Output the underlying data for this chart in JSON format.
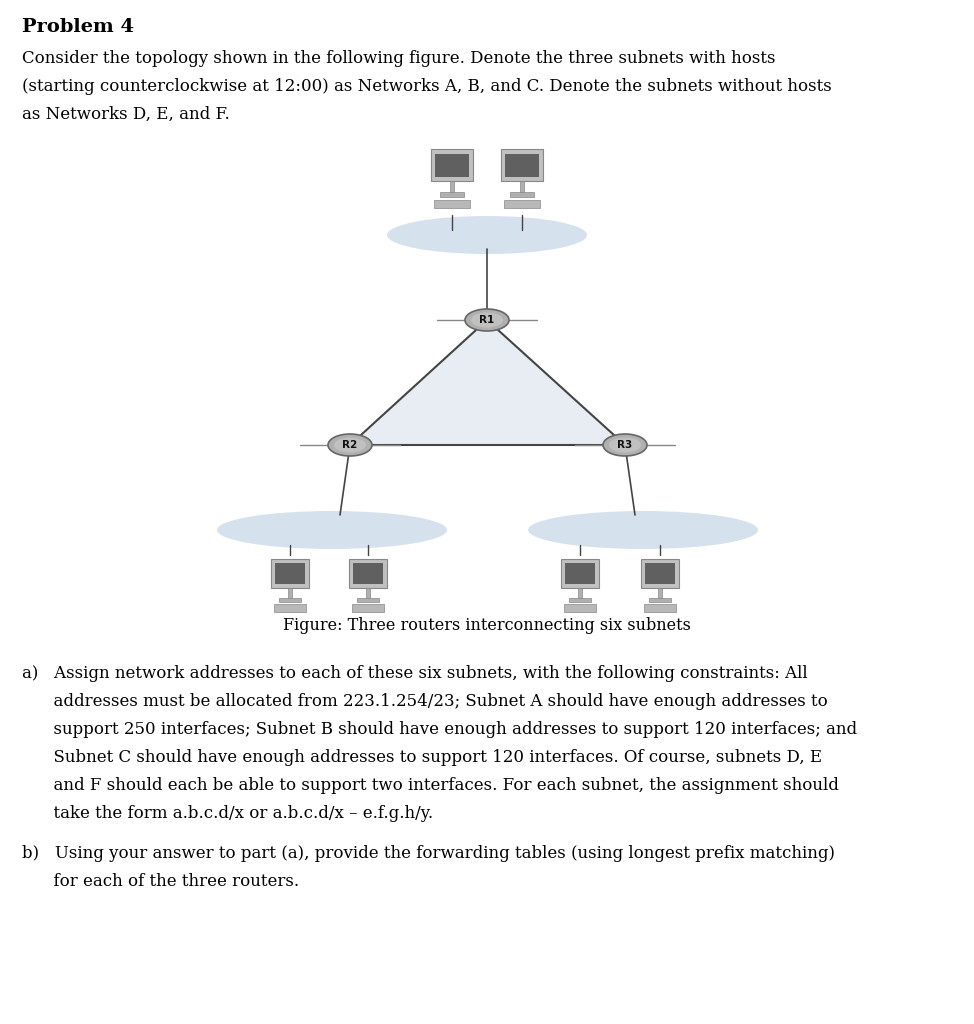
{
  "title": "Problem 4",
  "bg_color": "#ffffff",
  "text_color": "#000000",
  "font_family": "DejaVu Serif",
  "link_color": "#444444",
  "subnet_fill": "#c8d8e8",
  "subnet_alpha": 0.75,
  "tri_fill": "#d4dfe8",
  "router_face": "#909090",
  "router_edge": "#555555",
  "figure_caption": "Figure: Three routers interconnecting six subnets",
  "para1_lines": [
    "Consider the topology shown in the following figure. Denote the three subnets with hosts",
    "(starting counterclockwise at 12:00) as Networks A, B, and C. Denote the subnets without hosts",
    "as Networks D, E, and F."
  ],
  "part_a_lines": [
    "a)   Assign network addresses to each of these six subnets, with the following constraints: All",
    "      addresses must be allocated from 223.1.254/23; Subnet A should have enough addresses to",
    "      support 250 interfaces; Subnet B should have enough addresses to support 120 interfaces; and",
    "      Subnet C should have enough addresses to support 120 interfaces. Of course, subnets D, E",
    "      and F should each be able to support two interfaces. For each subnet, the assignment should",
    "      take the form a.b.c.d/x or a.b.c.d/x – e.f.g.h/y."
  ],
  "part_b_lines": [
    "b)   Using your answer to part (a), provide the forwarding tables (using longest prefix matching)",
    "      for each of the three routers."
  ]
}
